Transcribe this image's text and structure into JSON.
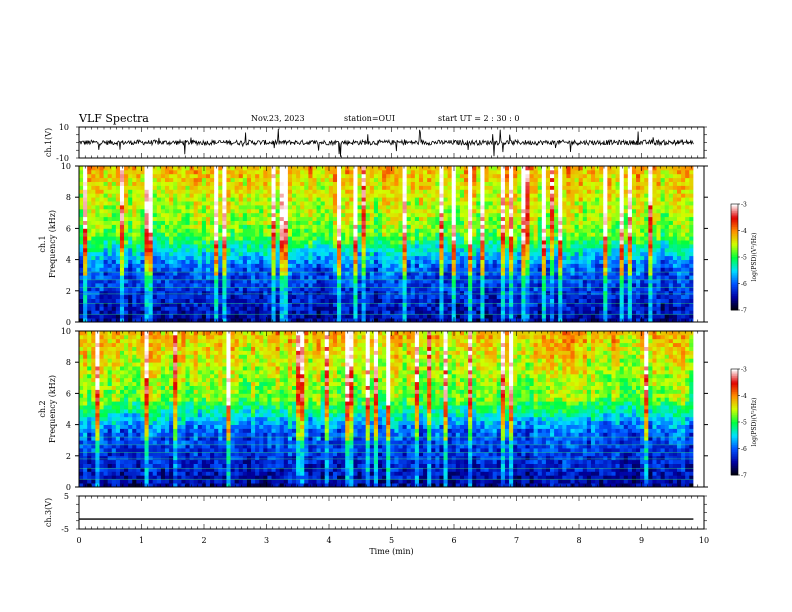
{
  "header": {
    "title": "VLF Spectra",
    "date": "Nov.23, 2023",
    "station": "station=OUI",
    "start": "start UT = 2 : 30 : 0"
  },
  "colorbar": {
    "label": "log(PSD)(V²/Hz)",
    "ticks": [
      "-3",
      "-4",
      "-5",
      "-6",
      "-7"
    ],
    "range": [
      -7,
      -3
    ],
    "colors": [
      "#000000",
      "#0000a0",
      "#0050ff",
      "#00e0ff",
      "#00ff40",
      "#d0ff00",
      "#ff9000",
      "#e00000",
      "#ffffff"
    ]
  },
  "chart_data": [
    {
      "type": "line",
      "panel": "ch.1 waveform",
      "ylabel": "ch.1(V)",
      "ylim": [
        -10,
        10
      ],
      "yticks": [
        "10",
        "-10"
      ],
      "xlim": [
        0,
        10
      ],
      "color": "#000000",
      "description_values": {
        "baseline": 0,
        "spikes_min": -10,
        "spikes_max": 10
      }
    },
    {
      "type": "heatmap",
      "panel": "ch.1 spectrogram",
      "ylabel": "ch.1\nFrequency (kHz)",
      "ylim": [
        0,
        10
      ],
      "yticks": [
        "0",
        "2",
        "4",
        "6",
        "8",
        "10"
      ],
      "xlim": [
        0,
        9.83
      ],
      "zlabel": "log(PSD)(V²/Hz)",
      "zlim": [
        -7,
        -3
      ]
    },
    {
      "type": "heatmap",
      "panel": "ch.2 spectrogram",
      "ylabel": "ch.2\nFrequency (kHz)",
      "ylim": [
        0,
        10
      ],
      "yticks": [
        "0",
        "2",
        "4",
        "6",
        "8",
        "10"
      ],
      "xlim": [
        0,
        9.83
      ],
      "zlabel": "log(PSD)(V²/Hz)",
      "zlim": [
        -7,
        -3
      ]
    },
    {
      "type": "line",
      "panel": "ch.3 waveform",
      "ylabel": "ch.3(V)",
      "ylim": [
        -5,
        5
      ],
      "yticks": [
        "5",
        "-5"
      ],
      "xlim": [
        0,
        10
      ],
      "x": [
        0,
        9.83
      ],
      "values": [
        -2,
        -2
      ],
      "xlabel": "Time (min)",
      "xticks": [
        "0",
        "1",
        "2",
        "3",
        "4",
        "5",
        "6",
        "7",
        "8",
        "9",
        "10"
      ]
    }
  ]
}
